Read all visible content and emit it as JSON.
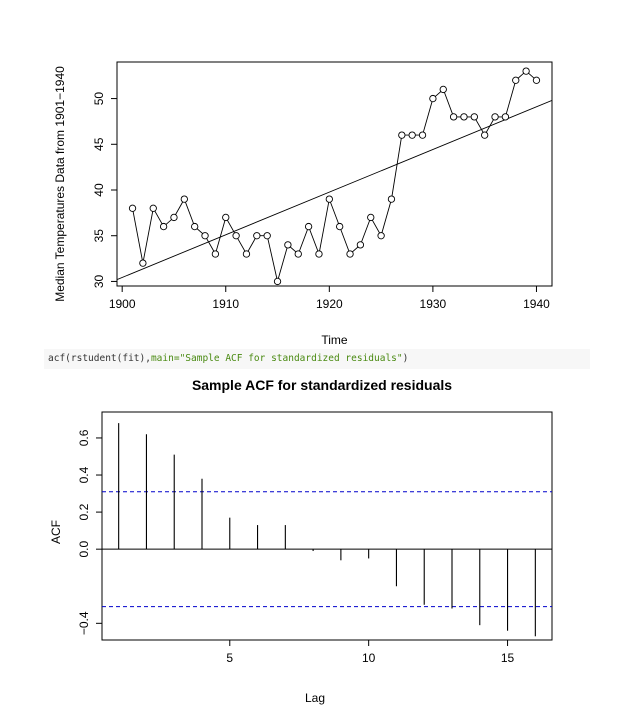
{
  "code_cell": {
    "fn": "acf(rstudent(fit),",
    "kw": "main=",
    "str": "\"Sample ACF for standardized residuals\"",
    "close": ")"
  },
  "chart_data": [
    {
      "type": "line",
      "title": "",
      "xlabel": "Time",
      "ylabel": "Median Temperatures Data from 1901−1940",
      "xlim": [
        1899.5,
        1941.5
      ],
      "ylim": [
        29.5,
        54
      ],
      "xticks": [
        1900,
        1910,
        1920,
        1930,
        1940
      ],
      "yticks": [
        30,
        35,
        40,
        45,
        50
      ],
      "x": [
        1901,
        1902,
        1903,
        1904,
        1905,
        1906,
        1907,
        1908,
        1909,
        1910,
        1911,
        1912,
        1913,
        1914,
        1915,
        1916,
        1917,
        1918,
        1919,
        1920,
        1921,
        1922,
        1923,
        1924,
        1925,
        1926,
        1927,
        1928,
        1929,
        1930,
        1931,
        1932,
        1933,
        1934,
        1935,
        1936,
        1937,
        1938,
        1939,
        1940
      ],
      "y": [
        38,
        32,
        38,
        36,
        37,
        39,
        36,
        35,
        33,
        37,
        35,
        33,
        35,
        35,
        30,
        34,
        33,
        36,
        33,
        39,
        36,
        33,
        34,
        37,
        35,
        39,
        46,
        46,
        46,
        50,
        51,
        48,
        48,
        48,
        46,
        48,
        48,
        52,
        53,
        52
      ],
      "trend_line": {
        "x": [
          1899.5,
          1941.5
        ],
        "y": [
          30.2,
          49.8
        ]
      }
    },
    {
      "type": "bar",
      "title": "Sample ACF for standardized residuals",
      "xlabel": "Lag",
      "ylabel": "ACF",
      "xlim": [
        0.4,
        16.6
      ],
      "ylim": [
        -0.49,
        0.74
      ],
      "xticks": [
        5,
        10,
        15
      ],
      "yticks": [
        -0.4,
        0.0,
        0.2,
        0.4,
        0.6
      ],
      "lags": [
        1,
        2,
        3,
        4,
        5,
        6,
        7,
        8,
        9,
        10,
        11,
        12,
        13,
        14,
        15,
        16
      ],
      "values": [
        0.68,
        0.62,
        0.51,
        0.38,
        0.17,
        0.13,
        0.13,
        -0.01,
        -0.06,
        -0.05,
        -0.2,
        -0.3,
        -0.32,
        -0.41,
        -0.44,
        -0.47
      ],
      "confidence_bound": 0.31,
      "bound_color": "#0000cc"
    }
  ]
}
